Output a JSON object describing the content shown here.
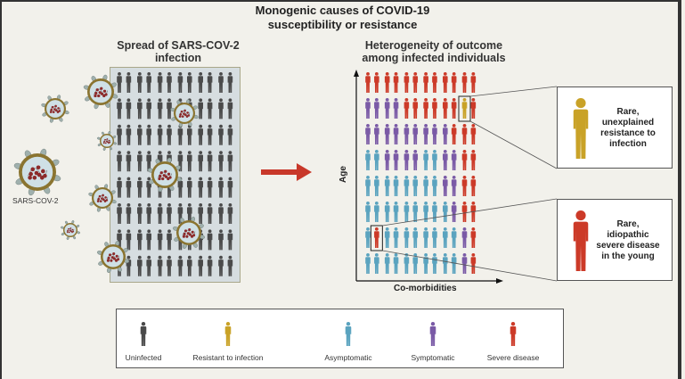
{
  "title": {
    "line1": "Monogenic causes of COVID-19",
    "line2": "susceptibility or resistance"
  },
  "left_panel": {
    "heading_line1": "Spread of SARS-COV-2",
    "heading_line2": "infection",
    "virus_label": "SARS-COV-2",
    "crowd_rows": 8,
    "crowd_cols": 12
  },
  "right_panel": {
    "heading_line1": "Heterogeneity of outcome",
    "heading_line2": "among infected individuals",
    "y_axis_label": "Age",
    "x_axis_label": "Co-morbidities",
    "grid": [
      "SSSSSSSSSSSS",
      "PPPPSSSSSSRS",
      "PPPPPPPPPSSS",
      "AAPPPPAAPPSS",
      "AAAAAAAAPPSS",
      "AAAAAAAAAPSS",
      "ASAAAAAAAAPS",
      "AAAAAAAAAAPS"
    ],
    "highlight_resistant": {
      "row": 2,
      "col": 11
    },
    "highlight_severe": {
      "row": 7,
      "col": 2
    }
  },
  "callouts": [
    {
      "name": "resistance",
      "lines": [
        "Rare,",
        "unexplained",
        "resistance to",
        "infection"
      ],
      "color_key": "resistant"
    },
    {
      "name": "severe",
      "lines": [
        "Rare,",
        "idiopathic",
        "severe disease",
        "in the young"
      ],
      "color_key": "severe"
    }
  ],
  "legend": [
    {
      "key": "uninfected",
      "label": "Uninfected"
    },
    {
      "key": "resistant",
      "label": "Resistant to infection"
    },
    {
      "key": "asymptomatic",
      "label": "Asymptomatic"
    },
    {
      "key": "symptomatic",
      "label": "Symptomatic"
    },
    {
      "key": "severe",
      "label": "Severe disease"
    }
  ],
  "colors": {
    "uninfected": "#4a4a4a",
    "resistant": "#c9a227",
    "asymptomatic": "#5aa3bf",
    "symptomatic": "#7a5aa6",
    "severe": "#cc3a28",
    "arrow": "#c8382a",
    "virus_shell": "#8a7430",
    "virus_inner": "#cfe0e6",
    "virus_rna": "#8c2a2a"
  }
}
